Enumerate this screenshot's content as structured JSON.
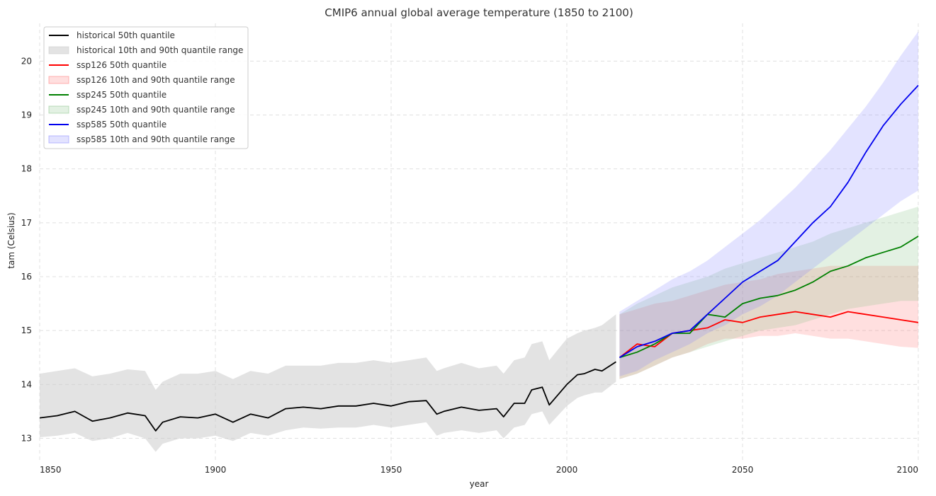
{
  "chart_data": {
    "type": "line",
    "title": "CMIP6 annual global average temperature (1850 to 2100)",
    "xlabel": "year",
    "ylabel": "tam (Celsius)",
    "xlim": [
      1850,
      2100
    ],
    "ylim": [
      12.6,
      20.7
    ],
    "xticks": [
      1850,
      1900,
      1950,
      2000,
      2050,
      2100
    ],
    "yticks": [
      13,
      14,
      15,
      16,
      17,
      18,
      19,
      20
    ],
    "grid": true,
    "legend_position": "top-left",
    "series": [
      {
        "name": "historical 50th quantile",
        "band_name": "historical 10th and 90th quantile range",
        "color": "#000000",
        "band_color": "#c8c8c8",
        "x": [
          1850,
          1855,
          1860,
          1865,
          1870,
          1875,
          1880,
          1883,
          1885,
          1890,
          1895,
          1900,
          1905,
          1910,
          1915,
          1920,
          1925,
          1930,
          1935,
          1940,
          1945,
          1950,
          1955,
          1960,
          1963,
          1965,
          1970,
          1975,
          1980,
          1982,
          1985,
          1988,
          1990,
          1993,
          1995,
          2000,
          2003,
          2005,
          2008,
          2010,
          2014
        ],
        "median": [
          13.38,
          13.42,
          13.5,
          13.32,
          13.38,
          13.47,
          13.42,
          13.14,
          13.3,
          13.4,
          13.38,
          13.45,
          13.3,
          13.45,
          13.38,
          13.55,
          13.58,
          13.55,
          13.6,
          13.6,
          13.65,
          13.6,
          13.68,
          13.7,
          13.45,
          13.5,
          13.58,
          13.52,
          13.55,
          13.4,
          13.65,
          13.65,
          13.9,
          13.95,
          13.62,
          14.0,
          14.18,
          14.2,
          14.28,
          14.25,
          14.42
        ],
        "low": [
          13.02,
          13.05,
          13.1,
          12.95,
          13.0,
          13.1,
          13.0,
          12.75,
          12.9,
          13.0,
          13.0,
          13.05,
          12.95,
          13.1,
          13.05,
          13.15,
          13.2,
          13.18,
          13.2,
          13.2,
          13.25,
          13.2,
          13.25,
          13.3,
          13.05,
          13.1,
          13.15,
          13.1,
          13.15,
          13.0,
          13.2,
          13.25,
          13.45,
          13.5,
          13.25,
          13.6,
          13.75,
          13.8,
          13.85,
          13.85,
          14.05
        ],
        "high": [
          14.2,
          14.25,
          14.3,
          14.15,
          14.2,
          14.28,
          14.25,
          13.9,
          14.05,
          14.2,
          14.2,
          14.25,
          14.1,
          14.25,
          14.2,
          14.35,
          14.35,
          14.35,
          14.4,
          14.4,
          14.45,
          14.4,
          14.45,
          14.5,
          14.25,
          14.3,
          14.4,
          14.3,
          14.35,
          14.2,
          14.45,
          14.5,
          14.75,
          14.8,
          14.45,
          14.85,
          14.95,
          15.0,
          15.05,
          15.1,
          15.3
        ]
      },
      {
        "name": "ssp126 50th quantile",
        "band_name": "ssp126 10th and 90th quantile range",
        "color": "#ff0000",
        "band_color": "#ff6f6f",
        "x": [
          2015,
          2020,
          2025,
          2030,
          2035,
          2040,
          2045,
          2050,
          2055,
          2060,
          2065,
          2070,
          2075,
          2080,
          2085,
          2090,
          2095,
          2100
        ],
        "median": [
          14.5,
          14.75,
          14.7,
          14.95,
          15.0,
          15.05,
          15.2,
          15.15,
          15.25,
          15.3,
          15.35,
          15.3,
          15.25,
          15.35,
          15.3,
          15.25,
          15.2,
          15.15
        ],
        "low": [
          14.1,
          14.2,
          14.35,
          14.5,
          14.6,
          14.75,
          14.85,
          14.85,
          14.9,
          14.9,
          14.95,
          14.9,
          14.85,
          14.85,
          14.8,
          14.75,
          14.7,
          14.68
        ],
        "high": [
          15.3,
          15.4,
          15.5,
          15.55,
          15.65,
          15.75,
          15.85,
          15.9,
          15.95,
          16.05,
          16.1,
          16.15,
          16.2,
          16.2,
          16.2,
          16.2,
          16.2,
          16.2
        ]
      },
      {
        "name": "ssp245 50th quantile",
        "band_name": "ssp245 10th and 90th quantile range",
        "color": "#008000",
        "band_color": "#7fbf7f",
        "x": [
          2015,
          2020,
          2025,
          2030,
          2035,
          2040,
          2045,
          2050,
          2055,
          2060,
          2065,
          2070,
          2075,
          2080,
          2085,
          2090,
          2095,
          2100
        ],
        "median": [
          14.5,
          14.6,
          14.75,
          14.95,
          14.95,
          15.3,
          15.25,
          15.5,
          15.6,
          15.65,
          15.75,
          15.9,
          16.1,
          16.2,
          16.35,
          16.45,
          16.55,
          16.75
        ],
        "low": [
          14.1,
          14.2,
          14.35,
          14.5,
          14.6,
          14.7,
          14.8,
          14.9,
          15.0,
          15.05,
          15.1,
          15.2,
          15.3,
          15.4,
          15.45,
          15.5,
          15.55,
          15.55
        ],
        "high": [
          15.3,
          15.5,
          15.65,
          15.8,
          15.9,
          16.0,
          16.15,
          16.25,
          16.35,
          16.45,
          16.55,
          16.65,
          16.8,
          16.9,
          17.0,
          17.1,
          17.2,
          17.3
        ]
      },
      {
        "name": "ssp585 50th quantile",
        "band_name": "ssp585 10th and 90th quantile range",
        "color": "#0000ee",
        "band_color": "#8080ff",
        "x": [
          2015,
          2020,
          2025,
          2030,
          2035,
          2040,
          2045,
          2050,
          2055,
          2060,
          2065,
          2070,
          2075,
          2080,
          2085,
          2090,
          2095,
          2100
        ],
        "median": [
          14.5,
          14.7,
          14.8,
          14.95,
          15.0,
          15.3,
          15.6,
          15.9,
          16.1,
          16.3,
          16.65,
          17.0,
          17.3,
          17.75,
          18.3,
          18.8,
          19.2,
          19.55
        ],
        "low": [
          14.15,
          14.25,
          14.45,
          14.6,
          14.75,
          14.95,
          15.1,
          15.3,
          15.45,
          15.65,
          15.9,
          16.15,
          16.4,
          16.65,
          16.9,
          17.15,
          17.4,
          17.6
        ],
        "high": [
          15.35,
          15.55,
          15.75,
          15.95,
          16.1,
          16.3,
          16.55,
          16.8,
          17.05,
          17.35,
          17.65,
          18.0,
          18.35,
          18.75,
          19.15,
          19.6,
          20.1,
          20.55
        ]
      }
    ]
  }
}
